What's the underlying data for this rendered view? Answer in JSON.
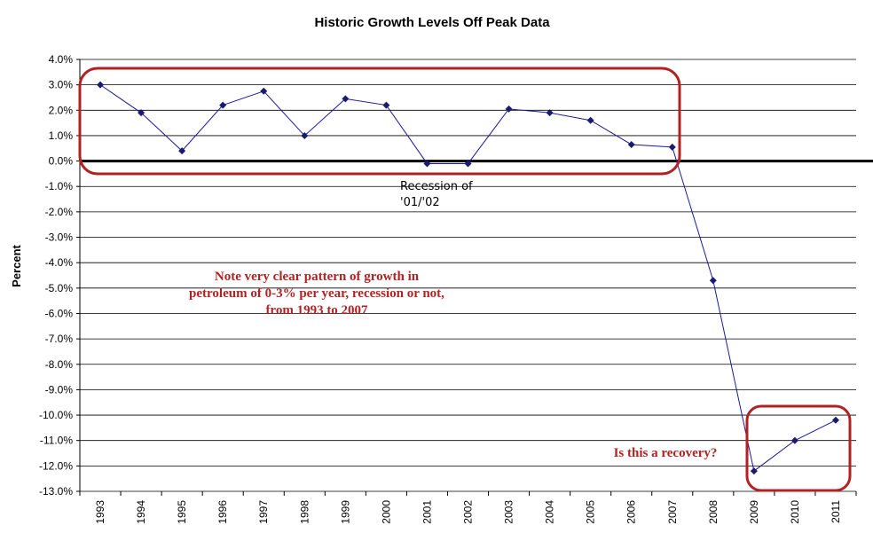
{
  "chart_data": {
    "type": "line",
    "title": "Historic Growth Levels Off Peak Data",
    "ylabel": "Percent",
    "xlabel": "",
    "categories": [
      "1993",
      "1994",
      "1995",
      "1996",
      "1997",
      "1998",
      "1999",
      "2000",
      "2001",
      "2002",
      "2003",
      "2004",
      "2005",
      "2006",
      "2007",
      "2008",
      "2009",
      "2010",
      "2011"
    ],
    "values": [
      3.0,
      1.9,
      0.4,
      2.2,
      2.75,
      1.0,
      2.45,
      2.2,
      -0.1,
      -0.1,
      2.05,
      1.9,
      1.6,
      0.65,
      0.55,
      -4.7,
      -12.2,
      -11.0,
      -10.2
    ],
    "ylim": [
      -13.0,
      4.0
    ],
    "ytick_labels": [
      "4.0%",
      "3.0%",
      "2.0%",
      "1.0%",
      "0.0%",
      "-1.0%",
      "-2.0%",
      "-3.0%",
      "-4.0%",
      "-5.0%",
      "-6.0%",
      "-7.0%",
      "-8.0%",
      "-9.0%",
      "-10.0%",
      "-11.0%",
      "-12.0%",
      "-13.0%"
    ],
    "grid": true,
    "line_color": "#1a1a9a",
    "marker_color": "#1a1a6e",
    "zero_line_color": "#000000",
    "highlight_color": "#b22222",
    "annotations": {
      "recession": [
        "Recession of",
        "'01/'02"
      ],
      "pattern_note": [
        "Note very clear pattern of growth in",
        "petroleum of 0-3% per year, recession or not,",
        "from 1993 to 2007"
      ],
      "recovery_note": "Is this a recovery?"
    }
  }
}
